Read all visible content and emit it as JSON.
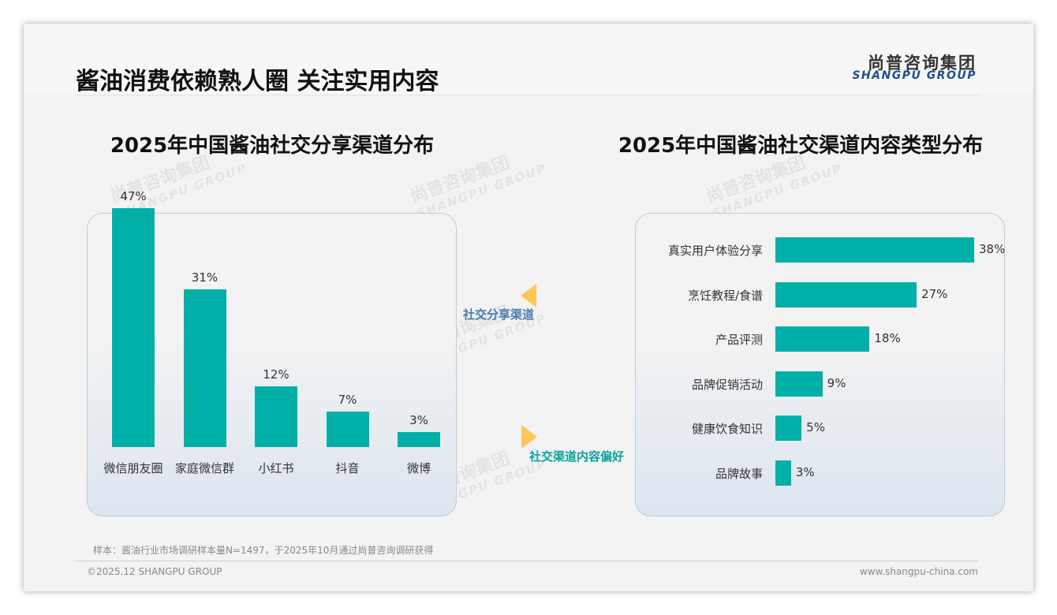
{
  "header": {
    "title": "酱油消费依赖熟人圈 关注实用内容",
    "logo_cn": "尚普咨询集团",
    "logo_en": "SHANGPU GROUP"
  },
  "watermark": {
    "cn": "尚普咨询集团",
    "en": "SHANGPU GROUP"
  },
  "colors": {
    "bar": "#00b0a8",
    "arrow": "#ffc75a",
    "label_left": "#4a7ab0",
    "label_right": "#0aa39b"
  },
  "connectors": {
    "left_label": "社交分享渠道",
    "right_label": "社交渠道内容偏好"
  },
  "chart_data": [
    {
      "type": "bar",
      "title": "2025年中国酱油社交分享渠道分布",
      "categories": [
        "微信朋友圈",
        "家庭微信群",
        "小红书",
        "抖音",
        "微博"
      ],
      "values": [
        47,
        31,
        12,
        7,
        3
      ],
      "value_labels": [
        "47%",
        "31%",
        "12%",
        "7%",
        "3%"
      ],
      "ylim": [
        0,
        47
      ]
    },
    {
      "type": "bar",
      "orientation": "horizontal",
      "title": "2025年中国酱油社交渠道内容类型分布",
      "categories": [
        "真实用户体验分享",
        "烹饪教程/食谱",
        "产品评测",
        "品牌促销活动",
        "健康饮食知识",
        "品牌故事"
      ],
      "values": [
        38,
        27,
        18,
        9,
        5,
        3
      ],
      "value_labels": [
        "38%",
        "27%",
        "18%",
        "9%",
        "5%",
        "3%"
      ],
      "xlim": [
        0,
        38
      ]
    }
  ],
  "footer": {
    "note": "样本：酱油行业市场调研样本量N=1497，于2025年10月通过尚普咨询调研获得",
    "copyright": "©2025.12 SHANGPU GROUP",
    "website": "www.shangpu-china.com"
  }
}
